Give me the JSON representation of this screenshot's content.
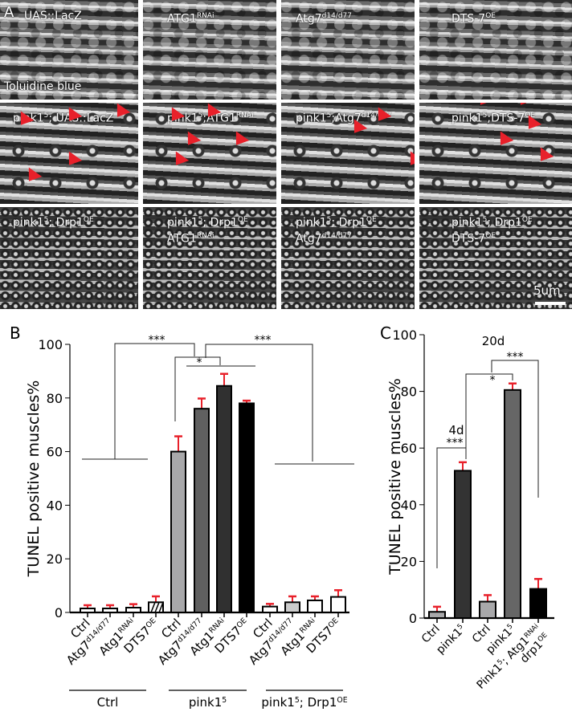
{
  "panel_a": {
    "letter": "A",
    "stain": "Toluidine blue",
    "scale_bar": "5um",
    "tiles": [
      [
        {
          "t": "UAS::LacZ"
        }
      ],
      [
        {
          "t": "ATG1"
        },
        {
          "t": "RNAi",
          "s": 1
        }
      ],
      [
        {
          "t": "Atg7"
        },
        {
          "t": "d14/d77",
          "s": 1
        }
      ],
      [
        {
          "t": "DTS-7"
        },
        {
          "t": "OE",
          "s": 1
        }
      ],
      [
        {
          "t": "pink1"
        },
        {
          "t": "5",
          "s": 1
        },
        {
          "t": "; UAS::LacZ"
        }
      ],
      [
        {
          "t": "pink1"
        },
        {
          "t": "5",
          "s": 1
        },
        {
          "t": ";ATG1"
        },
        {
          "t": "RNAi",
          "s": 1
        }
      ],
      [
        {
          "t": "pink1"
        },
        {
          "t": "5",
          "s": 1
        },
        {
          "t": ";Atg7"
        },
        {
          "t": "d14/d77",
          "s": 1
        }
      ],
      [
        {
          "t": "pink1"
        },
        {
          "t": "5",
          "s": 1
        },
        {
          "t": ";DTS-7"
        },
        {
          "t": "OE",
          "s": 1
        }
      ],
      [
        {
          "t": "pink1"
        },
        {
          "t": "5",
          "s": 1
        },
        {
          "t": "; Drp1"
        },
        {
          "t": "OE",
          "s": 1
        }
      ],
      [
        {
          "t": "pink1"
        },
        {
          "t": "5",
          "s": 1
        },
        {
          "t": "; Drp1"
        },
        {
          "t": "OE",
          "s": 1
        },
        {
          "t": "\nATG1"
        },
        {
          "t": "RNAi",
          "s": 1
        }
      ],
      [
        {
          "t": "pink1"
        },
        {
          "t": "5",
          "s": 1
        },
        {
          "t": "; Drp1"
        },
        {
          "t": "OE",
          "s": 1
        },
        {
          "t": "\nAtg7"
        },
        {
          "t": "d14/d77",
          "s": 1
        }
      ],
      [
        {
          "t": "pink1"
        },
        {
          "t": "5",
          "s": 1
        },
        {
          "t": "; Drp1"
        },
        {
          "t": "OE",
          "s": 1
        },
        {
          "t": "\nDTS-7"
        },
        {
          "t": "OE",
          "s": 1
        }
      ]
    ]
  },
  "colors": {
    "error": "#e8202a",
    "arrow": "#e8202a"
  },
  "chart_data": [
    {
      "panel": "B",
      "type": "bar",
      "ylabel": "TUNEL positive muscles%",
      "ylim": [
        0,
        100
      ],
      "yticks": [
        0,
        20,
        40,
        60,
        80,
        100
      ],
      "categories": [
        [
          {
            "t": "Ctrl"
          }
        ],
        [
          {
            "t": "Atg7"
          },
          {
            "t": "d14/d77",
            "s": 1
          }
        ],
        [
          {
            "t": "Atg1"
          },
          {
            "t": "RNAi",
            "s": 1
          }
        ],
        [
          {
            "t": "DTS7"
          },
          {
            "t": "OE",
            "s": 1
          }
        ],
        [
          {
            "t": "Ctrl"
          }
        ],
        [
          {
            "t": "Atg7"
          },
          {
            "t": "d14/d77",
            "s": 1
          }
        ],
        [
          {
            "t": "Atg1"
          },
          {
            "t": "RNAi",
            "s": 1
          }
        ],
        [
          {
            "t": "DTS7"
          },
          {
            "t": "OE",
            "s": 1
          }
        ],
        [
          {
            "t": "Ctrl"
          }
        ],
        [
          {
            "t": "Atg7"
          },
          {
            "t": "d14/d77",
            "s": 1
          }
        ],
        [
          {
            "t": "Atg1"
          },
          {
            "t": "RNAi",
            "s": 1
          }
        ],
        [
          {
            "t": "DTS7"
          },
          {
            "t": "OE",
            "s": 1
          }
        ]
      ],
      "values": [
        1.5,
        1.5,
        1.8,
        3.8,
        60,
        76,
        84.5,
        78,
        2.2,
        3.8,
        4.5,
        5.8
      ],
      "errors": [
        1.2,
        1.2,
        1.3,
        2.2,
        5.7,
        3.8,
        4.5,
        1.0,
        1.0,
        2.2,
        1.5,
        2.5
      ],
      "fills": [
        "#ffffff",
        "#ffffff",
        "#ffffff",
        "#ffffff",
        "#a8a8aa",
        "#606060",
        "#303030",
        "#000000",
        "#ffffff",
        "#cccccc",
        "#ffffff",
        "#ffffff"
      ],
      "groups": [
        [
          {
            "t": "Ctrl"
          }
        ],
        [
          {
            "t": "pink1"
          },
          {
            "t": "5",
            "s": 1
          }
        ],
        [
          {
            "t": "pink1"
          },
          {
            "t": "5",
            "s": 1
          },
          {
            "t": "; Drp1"
          },
          {
            "t": "OE",
            "s": 1
          }
        ]
      ],
      "significance": [
        "***",
        "*",
        "***"
      ]
    },
    {
      "panel": "C",
      "type": "bar",
      "ylabel": "TUNEL positive muscles%",
      "ylim": [
        0,
        100
      ],
      "yticks": [
        0,
        20,
        40,
        60,
        80,
        100
      ],
      "categories": [
        [
          {
            "t": "Ctrl"
          }
        ],
        [
          {
            "t": "pink1"
          },
          {
            "t": "5",
            "s": 1
          }
        ],
        [
          {
            "t": "Ctrl"
          }
        ],
        [
          {
            "t": "pink1"
          },
          {
            "t": "5",
            "s": 1
          }
        ],
        [
          {
            "t": "Pink1"
          },
          {
            "t": "5",
            "s": 1
          },
          {
            "t": "; Atg1"
          },
          {
            "t": "RNAi",
            "s": 1
          },
          {
            "t": "\ndrp1"
          },
          {
            "t": "OE",
            "s": 1
          }
        ]
      ],
      "values": [
        2.2,
        52,
        5.8,
        80.5,
        10.3
      ],
      "errors": [
        1.8,
        3.0,
        2.3,
        2.3,
        3.5
      ],
      "fills": [
        "#a8a8aa",
        "#333333",
        "#a8a8aa",
        "#666666",
        "#000000"
      ],
      "annotations": [
        "4d",
        "20d"
      ],
      "significance": [
        "***",
        "*",
        "***"
      ]
    }
  ]
}
